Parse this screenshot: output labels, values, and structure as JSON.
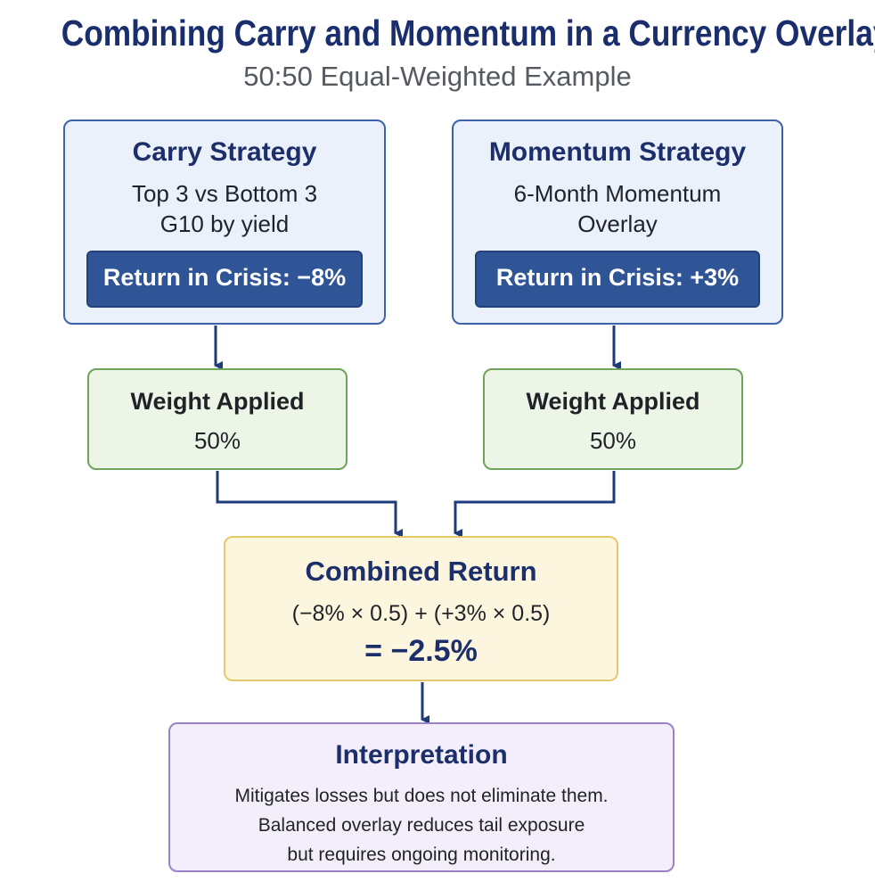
{
  "title": "Combining Carry and Momentum in a Currency Overlay",
  "subtitle": "50:50 Equal-Weighted Example",
  "carry": {
    "title": "Carry Strategy",
    "desc_line1": "Top 3 vs Bottom 3",
    "desc_line2": "G10 by yield",
    "crisis": "Return in Crisis: −8%"
  },
  "momentum": {
    "title": "Momentum Strategy",
    "desc_line1": "6-Month Momentum",
    "desc_line2": "Overlay",
    "crisis": "Return in Crisis: +3%"
  },
  "weight_left": {
    "title": "Weight Applied",
    "value": "50%"
  },
  "weight_right": {
    "title": "Weight Applied",
    "value": "50%"
  },
  "combined": {
    "title": "Combined Return",
    "formula": "(−8% × 0.5) + (+3% × 0.5)",
    "result": "= −2.5%"
  },
  "interpretation": {
    "title": "Interpretation",
    "line1": "Mitigates losses but does not eliminate them.",
    "line2": "Balanced overlay reduces tail exposure",
    "line3": "but requires ongoing monitoring."
  },
  "colors": {
    "title": "#1a2e6e",
    "strategy_fill": "#eaf1fb",
    "strategy_border": "#3c63a8",
    "crisis_pill": "#2f5596",
    "weight_fill": "#edf5e6",
    "weight_border": "#6ea45b",
    "combined_fill": "#fdf6df",
    "combined_border": "#e6c76a",
    "interp_fill": "#f3eefa",
    "interp_border": "#9a82c6",
    "arrow": "#1f3a7a"
  }
}
